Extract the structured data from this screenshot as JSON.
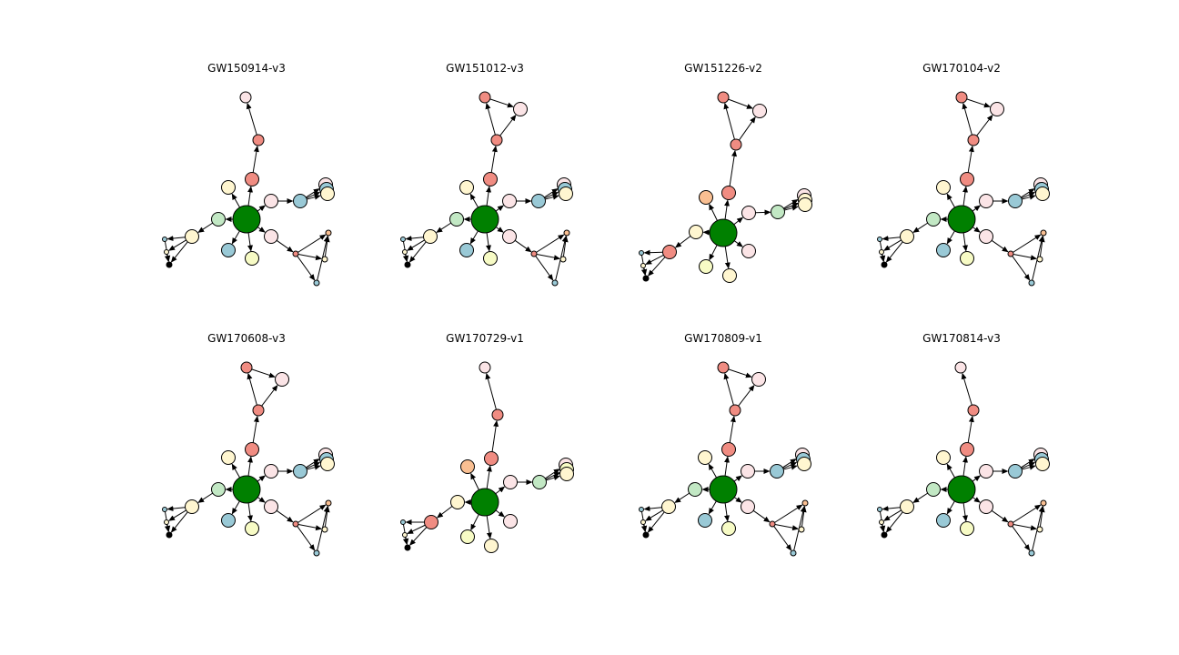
{
  "figure": {
    "colors": {
      "hub": "#008000",
      "salmon": "#F08C82",
      "pink": "#FBE4E6",
      "cream": "#FFF6D0",
      "mint": "#C2E8C4",
      "blue": "#99C9D6",
      "yellow": "#F7FBC5",
      "orange": "#F9BF92",
      "black": "#000000"
    },
    "panels": [
      {
        "title": "GW150914-v3",
        "variant": "A"
      },
      {
        "title": "GW151012-v3",
        "variant": "B"
      },
      {
        "title": "GW151226-v2",
        "variant": "C"
      },
      {
        "title": "GW170104-v2",
        "variant": "B"
      },
      {
        "title": "GW170608-v3",
        "variant": "B"
      },
      {
        "title": "GW170729-v1",
        "variant": "D"
      },
      {
        "title": "GW170809-v1",
        "variant": "B"
      },
      {
        "title": "GW170814-v3",
        "variant": "A"
      }
    ]
  }
}
